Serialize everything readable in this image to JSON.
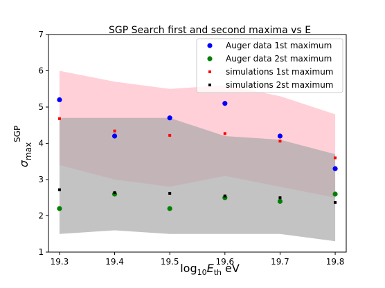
{
  "chart_data": {
    "type": "scatter",
    "title": "SGP Search first and second maxima vs E",
    "xlabel": {
      "prefix": "log",
      "sub": "10",
      "var": "E",
      "var_sub": "th",
      "suffix": "eV"
    },
    "ylabel": {
      "symbol": "σ",
      "sub": "max",
      "sup": "SGP"
    },
    "xlim": [
      19.28,
      19.82
    ],
    "ylim": [
      1,
      7
    ],
    "x_ticks": [
      19.3,
      19.4,
      19.5,
      19.6,
      19.7,
      19.8
    ],
    "x_tick_labels": [
      "19.3",
      "19.4",
      "19.5",
      "19.6",
      "19.7",
      "19.8"
    ],
    "y_ticks": [
      1,
      2,
      3,
      4,
      5,
      6,
      7
    ],
    "y_tick_labels": [
      "1",
      "2",
      "3",
      "4",
      "5",
      "6",
      "7"
    ],
    "grid": false,
    "legend_position": "top-right",
    "x": [
      19.3,
      19.4,
      19.5,
      19.6,
      19.7,
      19.8
    ],
    "bands": [
      {
        "color": "#ffc0cb",
        "opacity": 0.75,
        "lower": [
          3.4,
          3.0,
          2.8,
          3.1,
          2.8,
          2.5
        ],
        "upper": [
          6.0,
          5.7,
          5.5,
          5.6,
          5.3,
          4.8
        ]
      },
      {
        "color": "#a9a9a9",
        "opacity": 0.7,
        "lower": [
          1.5,
          1.6,
          1.5,
          1.5,
          1.5,
          1.3
        ],
        "upper": [
          4.7,
          4.7,
          4.7,
          4.2,
          4.1,
          3.7
        ]
      }
    ],
    "series": [
      {
        "name": "Auger data 1st maximum",
        "marker": "circle",
        "color": "#0000ff",
        "values": [
          5.2,
          4.2,
          4.7,
          5.1,
          4.2,
          3.3
        ]
      },
      {
        "name": "Auger data 2st maximum",
        "marker": "circle",
        "color": "#008000",
        "values": [
          2.2,
          2.6,
          2.2,
          2.5,
          2.4,
          2.6
        ]
      },
      {
        "name": "simulations 1st maximum",
        "marker": "square",
        "color": "#ff0000",
        "values": [
          4.68,
          4.34,
          4.22,
          4.27,
          4.06,
          3.6
        ]
      },
      {
        "name": "simulations 2st maximum",
        "marker": "square",
        "color": "#000000",
        "values": [
          2.72,
          2.64,
          2.62,
          2.55,
          2.5,
          2.37
        ]
      }
    ]
  }
}
